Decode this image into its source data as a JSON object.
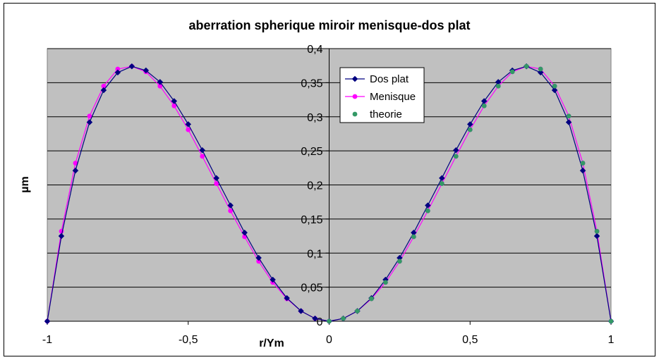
{
  "chart_data": {
    "type": "line",
    "title": "aberration spherique miroir menisque-dos plat",
    "xlabel": "r/Ym",
    "ylabel": "µm",
    "xlim": [
      -1,
      1
    ],
    "ylim": [
      0,
      0.4
    ],
    "x_ticks": [
      -1,
      -0.5,
      0,
      0.5,
      1
    ],
    "x_tick_labels": [
      "-1",
      "-0,5",
      "0",
      "0,5",
      "1"
    ],
    "y_ticks": [
      0,
      0.05,
      0.1,
      0.15,
      0.2,
      0.25,
      0.3,
      0.35,
      0.4
    ],
    "y_tick_labels": [
      "0",
      "0,05",
      "0,1",
      "0,15",
      "0,2",
      "0,25",
      "0,3",
      "0,35",
      "0,4"
    ],
    "grid": "horizontal",
    "legend_position": "top-center",
    "plot_background": "#c0c0c0",
    "series": [
      {
        "name": "Dos plat",
        "color": "#000080",
        "marker": "diamond",
        "line": true,
        "x": [
          -1,
          -0.95,
          -0.9,
          -0.85,
          -0.8,
          -0.75,
          -0.7,
          -0.65,
          -0.6,
          -0.55,
          -0.5,
          -0.45,
          -0.4,
          -0.35,
          -0.3,
          -0.25,
          -0.2,
          -0.15,
          -0.1,
          -0.05,
          0,
          0.05,
          0.1,
          0.15,
          0.2,
          0.25,
          0.3,
          0.35,
          0.4,
          0.45,
          0.5,
          0.55,
          0.6,
          0.65,
          0.7,
          0.75,
          0.8,
          0.85,
          0.9,
          0.95,
          1
        ],
        "y": [
          0,
          0.125,
          0.221,
          0.292,
          0.339,
          0.365,
          0.374,
          0.368,
          0.351,
          0.323,
          0.289,
          0.251,
          0.21,
          0.17,
          0.13,
          0.093,
          0.061,
          0.034,
          0.015,
          0.004,
          0,
          0.004,
          0.015,
          0.034,
          0.061,
          0.093,
          0.13,
          0.17,
          0.21,
          0.251,
          0.289,
          0.323,
          0.351,
          0.368,
          0.374,
          0.365,
          0.339,
          0.292,
          0.221,
          0.125,
          0
        ]
      },
      {
        "name": "Menisque",
        "color": "#ff00ff",
        "marker": "circle",
        "line": true,
        "x": [
          -1,
          -0.95,
          -0.9,
          -0.85,
          -0.8,
          -0.75,
          -0.7,
          -0.65,
          -0.6,
          -0.55,
          -0.5,
          -0.45,
          -0.4,
          -0.35,
          -0.3,
          -0.25,
          -0.2,
          -0.15,
          -0.1,
          -0.05,
          0,
          0.05,
          0.1,
          0.15,
          0.2,
          0.25,
          0.3,
          0.35,
          0.4,
          0.45,
          0.5,
          0.55,
          0.6,
          0.65,
          0.7,
          0.75,
          0.8,
          0.85,
          0.9,
          0.95,
          1
        ],
        "y": [
          0,
          0.132,
          0.232,
          0.301,
          0.345,
          0.37,
          0.374,
          0.366,
          0.345,
          0.316,
          0.281,
          0.242,
          0.202,
          0.162,
          0.124,
          0.088,
          0.057,
          0.033,
          0.015,
          0.004,
          0,
          0.004,
          0.015,
          0.033,
          0.057,
          0.088,
          0.124,
          0.162,
          0.202,
          0.242,
          0.281,
          0.316,
          0.345,
          0.366,
          0.374,
          0.37,
          0.345,
          0.301,
          0.232,
          0.132,
          0
        ]
      },
      {
        "name": "theorie",
        "color": "#339966",
        "marker": "circle",
        "line": false,
        "x": [
          0,
          0.05,
          0.1,
          0.15,
          0.2,
          0.25,
          0.3,
          0.35,
          0.4,
          0.45,
          0.5,
          0.55,
          0.6,
          0.65,
          0.7,
          0.75,
          0.8,
          0.85,
          0.9,
          0.95,
          1
        ],
        "y": [
          0,
          0.004,
          0.015,
          0.033,
          0.057,
          0.088,
          0.124,
          0.162,
          0.202,
          0.242,
          0.281,
          0.316,
          0.345,
          0.366,
          0.374,
          0.37,
          0.345,
          0.301,
          0.232,
          0.132,
          0
        ]
      }
    ]
  }
}
